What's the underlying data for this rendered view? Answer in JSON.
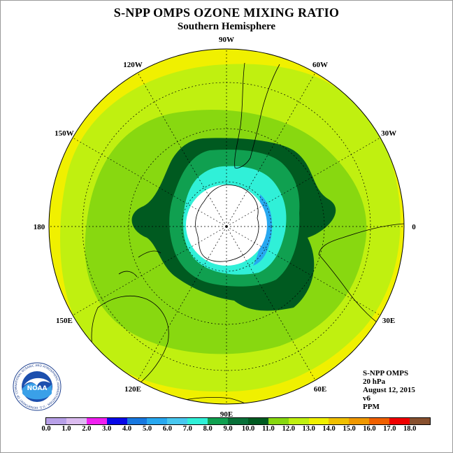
{
  "title": "S-NPP OMPS OZONE MIXING RATIO",
  "subtitle": "Southern Hemisphere",
  "longitude_labels": [
    "90W",
    "60W",
    "30W",
    "0",
    "30E",
    "60E",
    "90E",
    "120E",
    "150E",
    "180",
    "150W",
    "120W"
  ],
  "info": {
    "instrument": "S-NPP OMPS",
    "level": "20 hPa",
    "date": "August 12, 2015",
    "version": "v6",
    "units": "PPM"
  },
  "logo": {
    "name": "noaa-logo",
    "text": "NOAA",
    "ring_text": "NATIONAL OCEANIC AND ATMOSPHERIC ADMINISTRATION · U.S. DEPARTMENT OF COMMERCE"
  },
  "colorbar": {
    "colors": [
      "#b8a0e8",
      "#dcbcf0",
      "#f020f0",
      "#0808e8",
      "#1878e0",
      "#28a8f0",
      "#48c8f0",
      "#30f0d8",
      "#10a050",
      "#087038",
      "#005a20",
      "#88d810",
      "#c0f010",
      "#f0f000",
      "#f0c000",
      "#f09800",
      "#f06000",
      "#f00000",
      "#88502e"
    ],
    "labels": [
      "0.0",
      "1.0",
      "2.0",
      "3.0",
      "4.0",
      "5.0",
      "6.0",
      "7.0",
      "8.0",
      "9.0",
      "10.0",
      "11.0",
      "12.0",
      "13.0",
      "14.0",
      "15.0",
      "16.0",
      "17.0",
      "18.0"
    ]
  }
}
